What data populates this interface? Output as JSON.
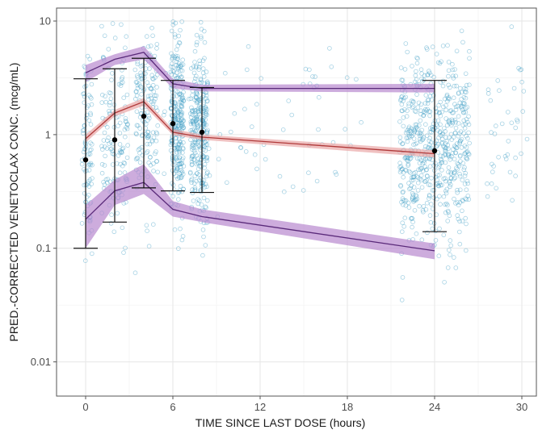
{
  "chart_data": {
    "type": "scatter",
    "title": "",
    "xlabel": "TIME SINCE LAST DOSE (hours)",
    "ylabel": "PRED.-CORRECTED VENETOCLAX CONC. (mcg/mL)",
    "x_scale": "linear",
    "y_scale": "log10",
    "xlim": [
      -2,
      31
    ],
    "ylim": [
      0.005,
      13
    ],
    "x_ticks": [
      0,
      6,
      12,
      18,
      24,
      30
    ],
    "x_tick_labels": [
      "0",
      "6",
      "12",
      "18",
      "24",
      "30"
    ],
    "y_ticks": [
      0.01,
      0.1,
      1,
      10
    ],
    "y_tick_labels": [
      "0.01",
      "0.1",
      "1",
      "10"
    ],
    "grid": true,
    "observed_scatter_color": "#3a9cc4",
    "observed_summary": [
      {
        "x": 0,
        "median": 0.6,
        "low": 0.1,
        "high": 3.1
      },
      {
        "x": 2,
        "median": 0.9,
        "low": 0.17,
        "high": 3.8
      },
      {
        "x": 4,
        "median": 1.45,
        "low": 0.34,
        "high": 4.7
      },
      {
        "x": 6,
        "median": 1.25,
        "low": 0.32,
        "high": 3.0
      },
      {
        "x": 8,
        "median": 1.05,
        "low": 0.31,
        "high": 2.6
      },
      {
        "x": 24,
        "median": 0.72,
        "low": 0.14,
        "high": 3.0
      }
    ],
    "series": [
      {
        "line_color": "#5a2a7a",
        "band_color": "#b889cf",
        "x": [
          0,
          2,
          4,
          6,
          8,
          24
        ],
        "values": [
          3.5,
          4.6,
          5.3,
          2.8,
          2.55,
          2.55
        ],
        "band_low": [
          2.9,
          4.1,
          4.6,
          2.55,
          2.4,
          2.35
        ],
        "band_high": [
          4.1,
          5.1,
          6.0,
          3.1,
          2.75,
          2.8
        ]
      },
      {
        "line_color": "#b03a3a",
        "band_color": "#e9a6a6",
        "x": [
          0,
          2,
          4,
          6,
          8,
          24
        ],
        "values": [
          0.92,
          1.55,
          1.95,
          1.05,
          0.95,
          0.68
        ],
        "band_low": [
          0.85,
          1.45,
          1.8,
          0.99,
          0.9,
          0.63
        ],
        "band_high": [
          1.0,
          1.65,
          2.1,
          1.12,
          1.0,
          0.73
        ]
      },
      {
        "line_color": "#5a2a7a",
        "band_color": "#b889cf",
        "x": [
          0,
          2,
          4,
          6,
          8,
          24
        ],
        "values": [
          0.18,
          0.32,
          0.38,
          0.22,
          0.19,
          0.095
        ],
        "band_low": [
          0.1,
          0.24,
          0.3,
          0.19,
          0.17,
          0.08
        ],
        "band_high": [
          0.24,
          0.4,
          0.55,
          0.26,
          0.22,
          0.11
        ]
      }
    ]
  }
}
